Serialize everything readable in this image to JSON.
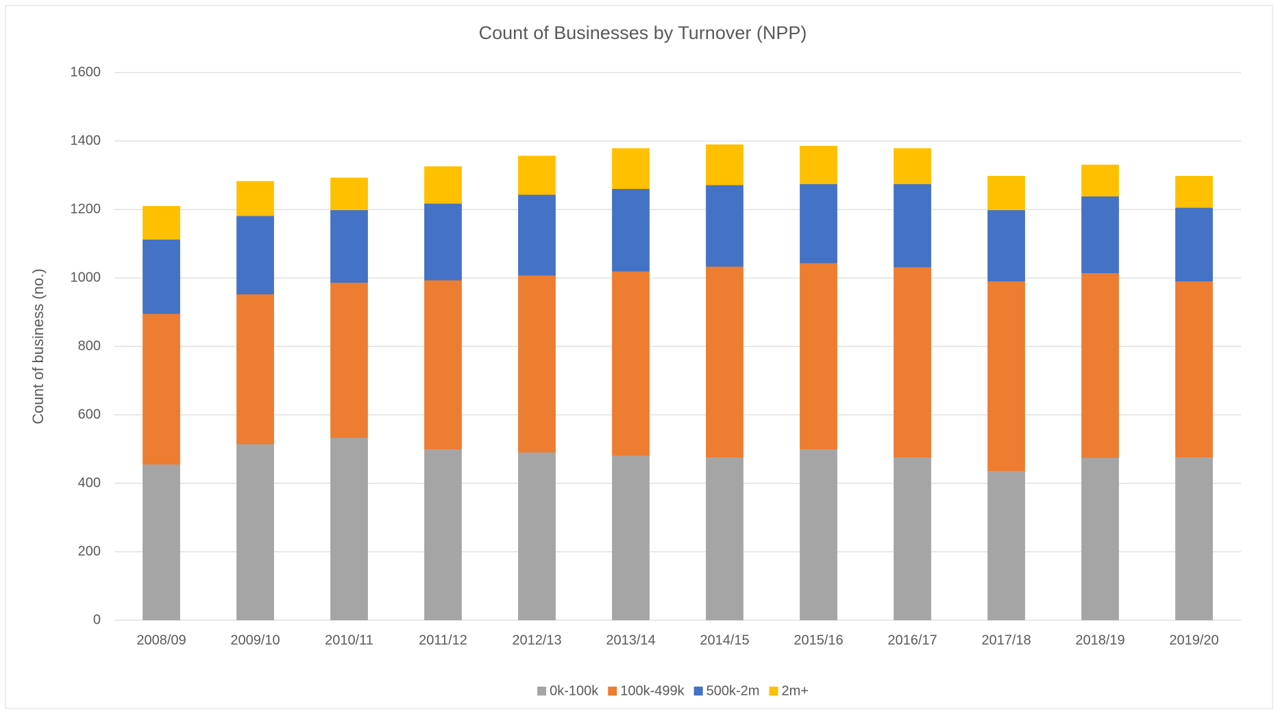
{
  "chart_data": {
    "type": "stacked-bar",
    "title": "Count of Businesses by Turnover (NPP)",
    "y_label": "Count of business (no.)",
    "categories": [
      "2008/09",
      "2009/10",
      "2010/11",
      "2011/12",
      "2012/13",
      "2013/14",
      "2014/15",
      "2015/16",
      "2016/17",
      "2017/18",
      "2018/19",
      "2019/20"
    ],
    "series": [
      {
        "name": "0k-100k",
        "color": "#a5a5a5",
        "values": [
          455,
          514,
          533,
          500,
          490,
          481,
          476,
          500,
          476,
          436,
          474,
          476
        ]
      },
      {
        "name": "100k-499k",
        "color": "#ed7d31",
        "values": [
          440,
          438,
          453,
          493,
          517,
          538,
          557,
          543,
          555,
          554,
          540,
          514
        ]
      },
      {
        "name": "500k-2m",
        "color": "#4472c4",
        "values": [
          217,
          229,
          212,
          224,
          236,
          241,
          238,
          231,
          243,
          208,
          224,
          215
        ]
      },
      {
        "name": "2m+",
        "color": "#ffc000",
        "values": [
          98,
          102,
          95,
          109,
          114,
          119,
          119,
          112,
          105,
          100,
          93,
          93
        ]
      }
    ],
    "ylim": [
      0,
      1600
    ],
    "yticks": [
      0,
      200,
      400,
      600,
      800,
      1000,
      1200,
      1400,
      1600
    ],
    "grid": true,
    "legend": "bottom"
  }
}
